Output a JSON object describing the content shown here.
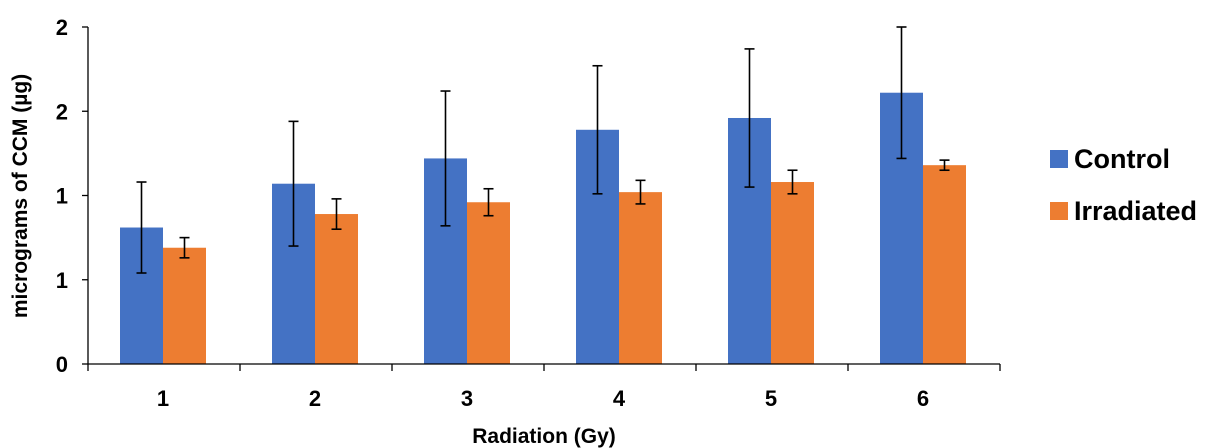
{
  "chart_data": {
    "type": "bar",
    "title": "",
    "xlabel": "Radiation (Gy)",
    "ylabel": "micrograms of CCM (µg)",
    "categories": [
      "1",
      "2",
      "3",
      "4",
      "5",
      "6"
    ],
    "yticks": [
      {
        "value": 0,
        "label": "0"
      },
      {
        "value": 0.5,
        "label": "1"
      },
      {
        "value": 1.0,
        "label": "1"
      },
      {
        "value": 1.5,
        "label": "2"
      },
      {
        "value": 2.0,
        "label": "2"
      }
    ],
    "ylim": [
      0,
      2.0
    ],
    "grid": false,
    "legend_position": "right",
    "series": [
      {
        "name": "Control",
        "color": "#4472C4",
        "values": [
          0.81,
          1.07,
          1.22,
          1.39,
          1.46,
          1.61
        ],
        "error": [
          0.27,
          0.37,
          0.4,
          0.38,
          0.41,
          0.39
        ]
      },
      {
        "name": "Irradiated",
        "color": "#ED7D31",
        "values": [
          0.69,
          0.89,
          0.96,
          1.02,
          1.08,
          1.18
        ],
        "error": [
          0.06,
          0.09,
          0.08,
          0.07,
          0.07,
          0.03
        ]
      }
    ]
  }
}
